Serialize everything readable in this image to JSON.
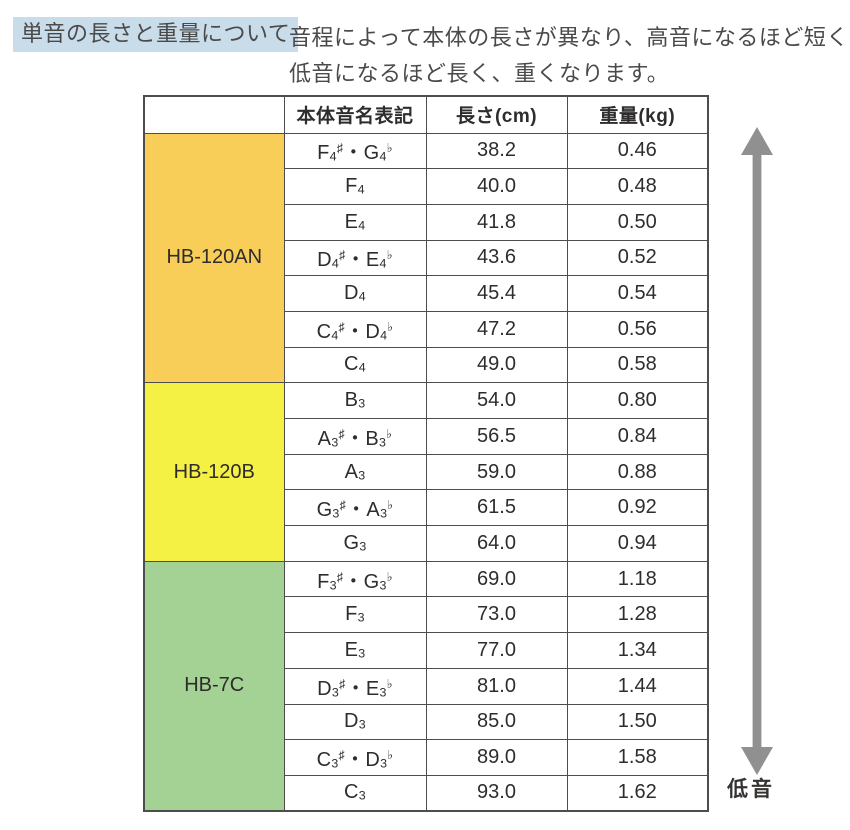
{
  "page": {
    "title": "単音の長さと重量について",
    "description_line1": "音程によって本体の長さが異なり、高音になるほど短く、",
    "description_line2": "低音になるほど長く、重くなります。",
    "low_pitch_label": "低音"
  },
  "colors": {
    "title_highlight": "#C9DCE9",
    "group_hb120an": "#F9CE58",
    "group_hb120b": "#F4F044",
    "group_hb7c": "#A3D294",
    "arrow": "#909090",
    "border": "#4d4d4d"
  },
  "table": {
    "headers": [
      "",
      "本体音名表記",
      "長さ(cm)",
      "重量(kg)"
    ],
    "groups": [
      {
        "model": "HB-120AN",
        "color_key": "group_hb120an",
        "rows": [
          {
            "note": "F4♯・G4♭",
            "length_cm": "38.2",
            "weight_kg": "0.46"
          },
          {
            "note": "F4",
            "length_cm": "40.0",
            "weight_kg": "0.48"
          },
          {
            "note": "E4",
            "length_cm": "41.8",
            "weight_kg": "0.50"
          },
          {
            "note": "D4♯・E4♭",
            "length_cm": "43.6",
            "weight_kg": "0.52"
          },
          {
            "note": "D4",
            "length_cm": "45.4",
            "weight_kg": "0.54"
          },
          {
            "note": "C4♯・D4♭",
            "length_cm": "47.2",
            "weight_kg": "0.56"
          },
          {
            "note": "C4",
            "length_cm": "49.0",
            "weight_kg": "0.58"
          }
        ]
      },
      {
        "model": "HB-120B",
        "color_key": "group_hb120b",
        "rows": [
          {
            "note": "B3",
            "length_cm": "54.0",
            "weight_kg": "0.80"
          },
          {
            "note": "A3♯・B3♭",
            "length_cm": "56.5",
            "weight_kg": "0.84"
          },
          {
            "note": "A3",
            "length_cm": "59.0",
            "weight_kg": "0.88"
          },
          {
            "note": "G3♯・A3♭",
            "length_cm": "61.5",
            "weight_kg": "0.92"
          },
          {
            "note": "G3",
            "length_cm": "64.0",
            "weight_kg": "0.94"
          }
        ]
      },
      {
        "model": "HB-7C",
        "color_key": "group_hb7c",
        "rows": [
          {
            "note": "F3♯・G3♭",
            "length_cm": "69.0",
            "weight_kg": "1.18"
          },
          {
            "note": "F3",
            "length_cm": "73.0",
            "weight_kg": "1.28"
          },
          {
            "note": "E3",
            "length_cm": "77.0",
            "weight_kg": "1.34"
          },
          {
            "note": "D3♯・E3♭",
            "length_cm": "81.0",
            "weight_kg": "1.44"
          },
          {
            "note": "D3",
            "length_cm": "85.0",
            "weight_kg": "1.50"
          },
          {
            "note": "C3♯・D3♭",
            "length_cm": "89.0",
            "weight_kg": "1.58"
          },
          {
            "note": "C3",
            "length_cm": "93.0",
            "weight_kg": "1.62"
          }
        ]
      }
    ]
  }
}
